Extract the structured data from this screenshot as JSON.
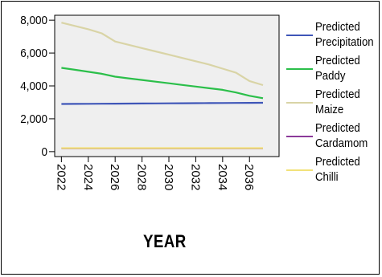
{
  "chart_data": {
    "type": "line",
    "title": "",
    "xlabel": "YEAR",
    "ylabel": "",
    "x": [
      2022,
      2023,
      2024,
      2025,
      2026,
      2027,
      2028,
      2029,
      2030,
      2031,
      2032,
      2033,
      2034,
      2035,
      2036,
      2037
    ],
    "x_ticks": [
      "2022",
      "2024",
      "2026",
      "2028",
      "2030",
      "2032",
      "2034",
      "2036"
    ],
    "y_ticks": [
      "0",
      "2,000",
      "4,000",
      "6,000",
      "8,000"
    ],
    "y_tick_values": [
      0,
      2000,
      4000,
      6000,
      8000
    ],
    "xlim": [
      2021.5,
      2038.2
    ],
    "ylim": [
      -300,
      8300
    ],
    "grid": false,
    "legend_position": "right",
    "background": "#efefef",
    "series": [
      {
        "name_lines": [
          "Predicted",
          "Precipitation"
        ],
        "color": "#3f56b8",
        "values": [
          2900,
          2905,
          2910,
          2915,
          2920,
          2925,
          2930,
          2935,
          2940,
          2945,
          2950,
          2955,
          2960,
          2965,
          2970,
          2975
        ]
      },
      {
        "name_lines": [
          "Predicted",
          "Paddy"
        ],
        "color": "#2bbf4a",
        "values": [
          5100,
          4980,
          4860,
          4740,
          4560,
          4460,
          4360,
          4260,
          4160,
          4060,
          3960,
          3860,
          3760,
          3600,
          3400,
          3250
        ]
      },
      {
        "name_lines": [
          "Predicted",
          "Maize"
        ],
        "color": "#d9d4a6",
        "values": [
          7850,
          7650,
          7450,
          7200,
          6700,
          6500,
          6300,
          6100,
          5900,
          5700,
          5500,
          5300,
          5050,
          4800,
          4300,
          4050
        ]
      },
      {
        "name_lines": [
          "Predicted",
          "Cardamom"
        ],
        "color": "#8b3a9a",
        "values": [
          200,
          200,
          200,
          200,
          200,
          200,
          200,
          200,
          200,
          200,
          200,
          200,
          200,
          200,
          200,
          200
        ]
      },
      {
        "name_lines": [
          "Predicted",
          "Chilli"
        ],
        "color": "#f2e27a",
        "values": [
          215,
          215,
          215,
          215,
          215,
          215,
          215,
          215,
          215,
          215,
          215,
          215,
          215,
          215,
          215,
          215
        ]
      }
    ]
  }
}
